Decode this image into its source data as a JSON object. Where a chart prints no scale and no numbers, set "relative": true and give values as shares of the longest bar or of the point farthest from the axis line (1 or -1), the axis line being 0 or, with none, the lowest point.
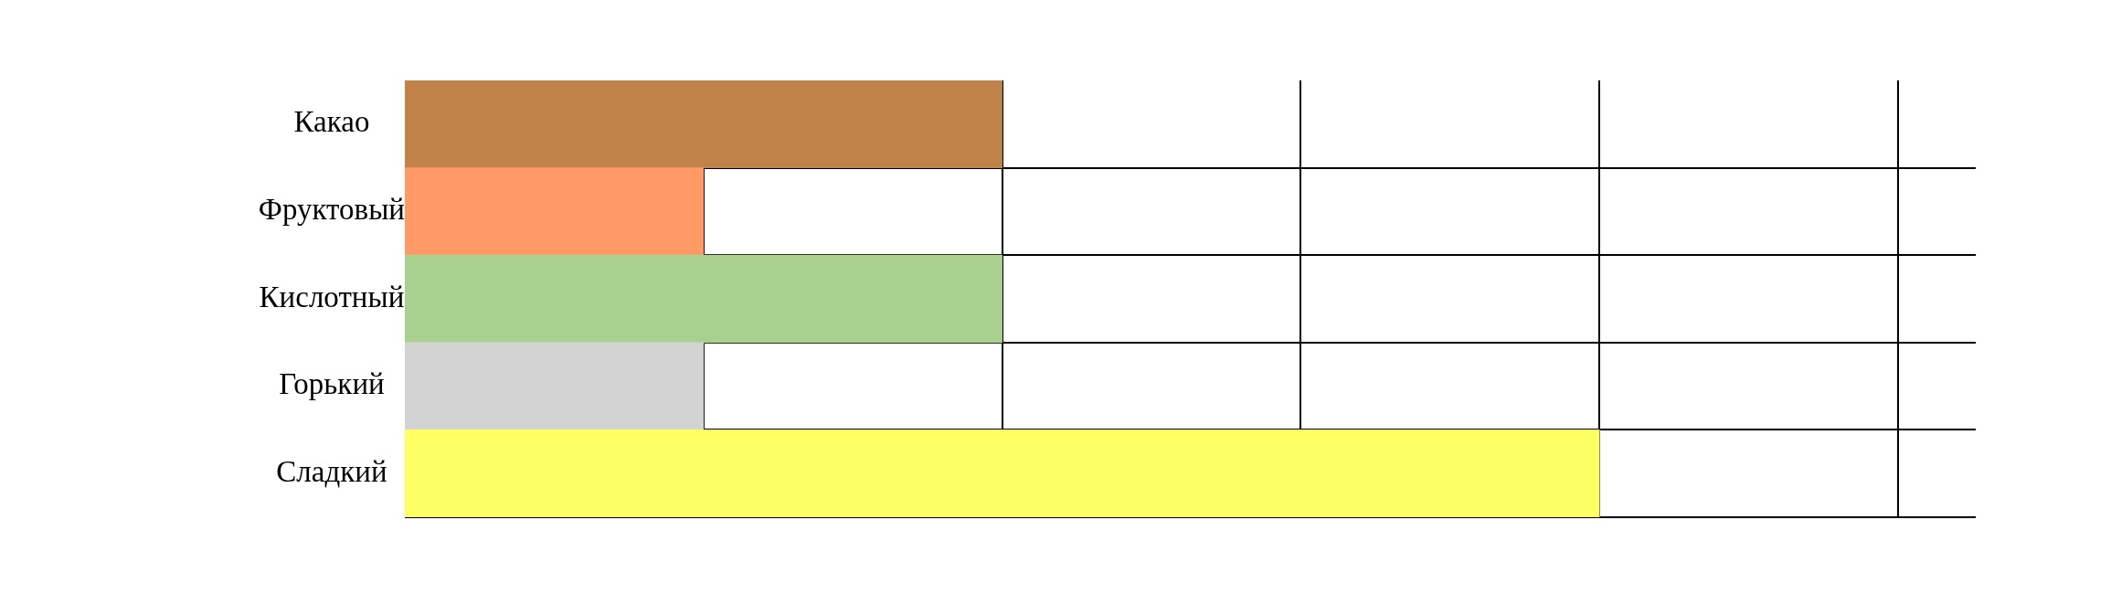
{
  "chart_data": {
    "type": "bar",
    "orientation": "horizontal",
    "relative": true,
    "grid": true,
    "legend": false,
    "categories": [
      "Какао",
      "Фруктовый",
      "Кислотный",
      "Горький",
      "Сладкий"
    ],
    "values": [
      0.5,
      0.25,
      0.5,
      0.25,
      1
    ],
    "colors": [
      "#c0834a",
      "#ff9966",
      "#aad08f",
      "#d3d3d3",
      "#ffff66"
    ]
  }
}
